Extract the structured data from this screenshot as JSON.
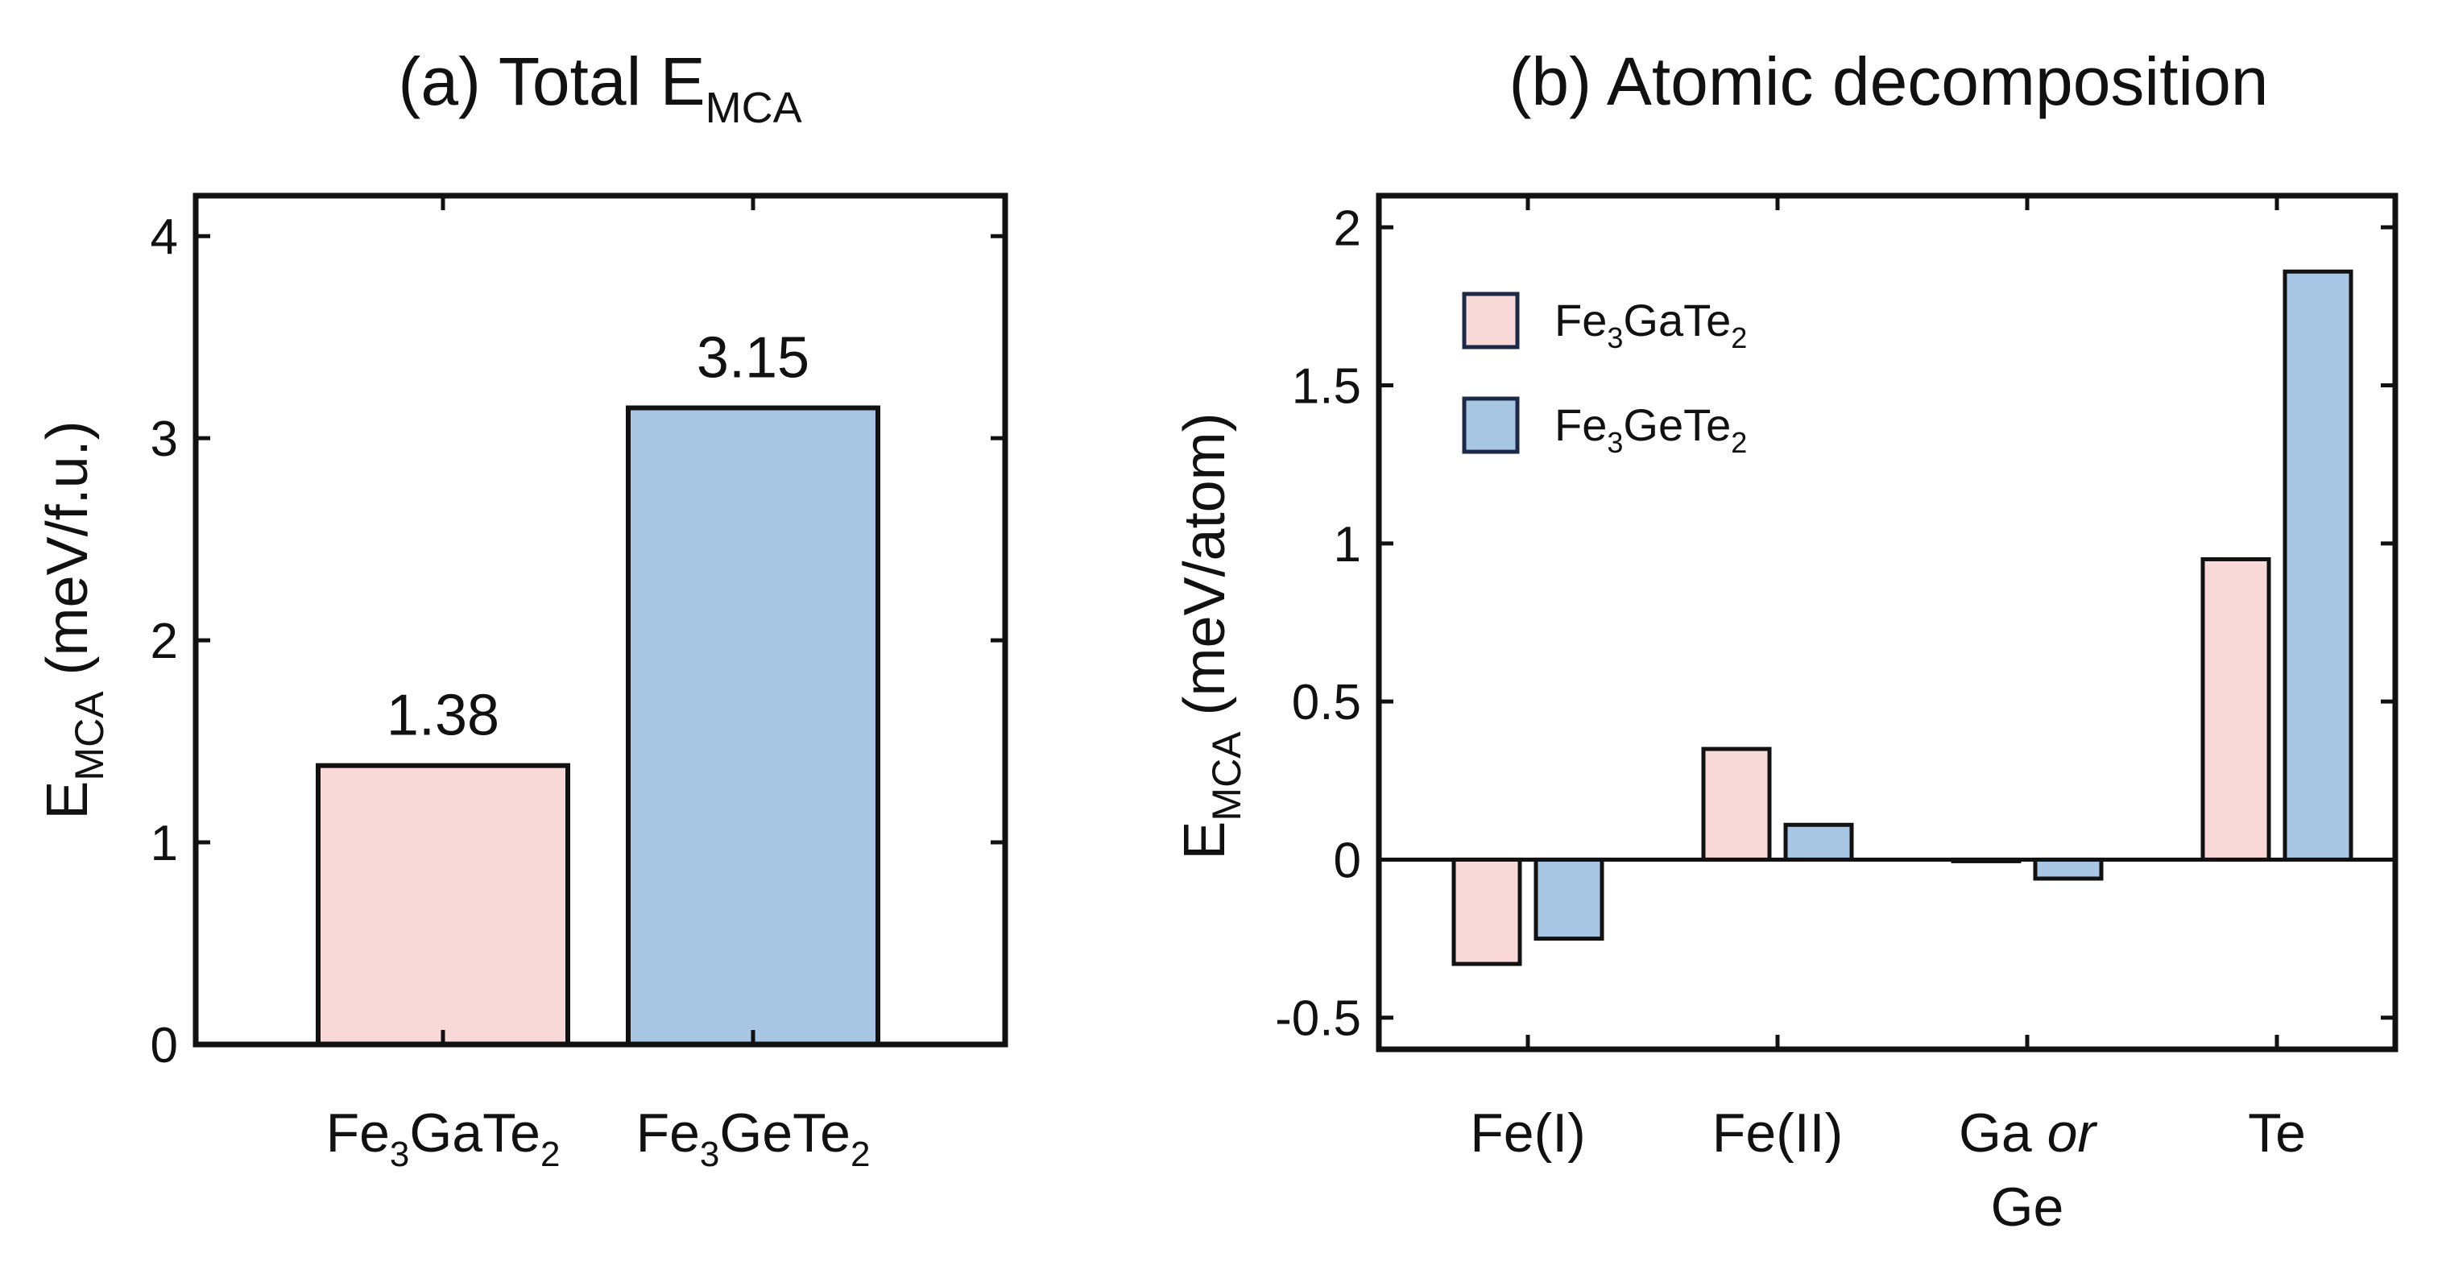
{
  "chart_data": [
    {
      "type": "bar",
      "panel": "a",
      "title": "(a) Total E",
      "title_sub": "MCA",
      "ylabel": "E",
      "ylabel_sub": "MCA",
      "ylabel_unit": " (meV/f.u.)",
      "ylim": [
        0,
        4.2
      ],
      "yticks": [
        0,
        1,
        2,
        3,
        4
      ],
      "categories": [
        {
          "parts": [
            [
              "Fe",
              ""
            ],
            [
              "3",
              "sub"
            ],
            [
              "GaTe",
              ""
            ],
            [
              "2",
              "sub"
            ]
          ]
        },
        {
          "parts": [
            [
              "Fe",
              ""
            ],
            [
              "3",
              "sub"
            ],
            [
              "GeTe",
              ""
            ],
            [
              "2",
              "sub"
            ]
          ]
        }
      ],
      "values": [
        1.38,
        3.15
      ],
      "value_labels": [
        "1.38",
        "3.15"
      ],
      "colors": [
        "#f9d9d8",
        "#a7c6e4"
      ]
    },
    {
      "type": "bar",
      "panel": "b",
      "title": "(b) Atomic decomposition",
      "ylabel": "E",
      "ylabel_sub": "MCA",
      "ylabel_unit": " (meV/atom)",
      "ylim": [
        -0.6,
        2.1
      ],
      "yticks": [
        -0.5,
        0,
        0.5,
        1,
        1.5,
        2
      ],
      "ytick_labels": [
        "-0.5",
        "0",
        "0.5",
        "1",
        "1.5",
        "2"
      ],
      "categories": [
        {
          "lines": [
            [
              [
                "Fe(I)",
                ""
              ]
            ]
          ]
        },
        {
          "lines": [
            [
              [
                "Fe(II)",
                ""
              ]
            ]
          ]
        },
        {
          "lines": [
            [
              [
                "Ga ",
                ""
              ],
              [
                "or",
                "italic"
              ]
            ],
            [
              [
                "Ge",
                ""
              ]
            ]
          ]
        },
        {
          "lines": [
            [
              [
                "Te",
                ""
              ]
            ]
          ]
        }
      ],
      "legend_position": "top-left",
      "series": [
        {
          "name": "Fe3GaTe2",
          "legend_parts": [
            [
              "Fe",
              ""
            ],
            [
              "3",
              "sub"
            ],
            [
              "GaTe",
              ""
            ],
            [
              "2",
              "sub"
            ]
          ],
          "color": "#f9d9d8",
          "values": [
            -0.33,
            0.35,
            -0.005,
            0.95
          ]
        },
        {
          "name": "Fe3GeTe2",
          "legend_parts": [
            [
              "Fe",
              ""
            ],
            [
              "3",
              "sub"
            ],
            [
              "GeTe",
              ""
            ],
            [
              "2",
              "sub"
            ]
          ],
          "color": "#a7c6e4",
          "values": [
            -0.25,
            0.11,
            -0.06,
            1.86
          ]
        }
      ]
    }
  ]
}
